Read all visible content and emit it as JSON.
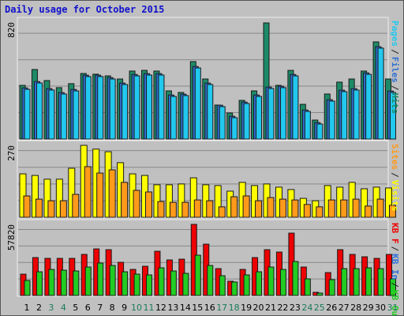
{
  "title": "Daily usage for October 2015",
  "chart_data": [
    {
      "type": "bar",
      "ylim": [
        0,
        820
      ],
      "yticks": [
        820
      ],
      "legend_separator": "/",
      "series": [
        {
          "name": "Hits",
          "color": "#1d8a67",
          "values": [
            379,
            491,
            413,
            363,
            391,
            463,
            458,
            446,
            424,
            480,
            485,
            480,
            340,
            329,
            547,
            424,
            240,
            184,
            273,
            340,
            820,
            379,
            485,
            245,
            134,
            318,
            402,
            424,
            480,
            686,
            424
          ]
        },
        {
          "name": "Files",
          "color": "#2e6fd6",
          "values": [
            361,
            406,
            356,
            328,
            350,
            451,
            451,
            434,
            395,
            456,
            462,
            462,
            311,
            317,
            512,
            395,
            239,
            161,
            261,
            311,
            367,
            373,
            456,
            205,
            116,
            278,
            345,
            356,
            467,
            652,
            339
          ]
        },
        {
          "name": "Pages",
          "color": "#22c8ee",
          "values": [
            351,
            396,
            346,
            318,
            340,
            441,
            441,
            424,
            385,
            446,
            452,
            452,
            301,
            307,
            502,
            385,
            229,
            151,
            251,
            301,
            357,
            363,
            446,
            195,
            106,
            268,
            335,
            346,
            457,
            642,
            329
          ]
        }
      ]
    },
    {
      "type": "bar",
      "ylim": [
        0,
        270
      ],
      "yticks": [
        270
      ],
      "legend_separator": "/",
      "series": [
        {
          "name": "Visits",
          "color": "#ffff00",
          "values": [
            163,
            157,
            143,
            143,
            184,
            270,
            256,
            246,
            205,
            163,
            157,
            122,
            122,
            125,
            148,
            122,
            119,
            98,
            131,
            119,
            125,
            113,
            104,
            71,
            62,
            119,
            113,
            131,
            107,
            113,
            110
          ]
        },
        {
          "name": "Sites",
          "color": "#ff9a1a",
          "values": [
            80,
            68,
            62,
            62,
            86,
            190,
            166,
            178,
            131,
            101,
            95,
            59,
            56,
            56,
            65,
            62,
            39,
            77,
            80,
            62,
            74,
            68,
            65,
            48,
            39,
            65,
            65,
            68,
            42,
            68,
            45
          ]
        }
      ]
    },
    {
      "type": "bar",
      "ylim": [
        0,
        57820
      ],
      "yticks": [
        57820
      ],
      "legend_separator": "/",
      "categories": [
        "1",
        "2",
        "3",
        "4",
        "5",
        "6",
        "7",
        "8",
        "9",
        "10",
        "11",
        "12",
        "13",
        "14",
        "15",
        "16",
        "17",
        "18",
        "19",
        "20",
        "21",
        "22",
        "23",
        "24",
        "25",
        "26",
        "27",
        "28",
        "29",
        "30",
        "31"
      ],
      "category_colors": [
        "#000000",
        "#000000",
        "#1a7a5a",
        "#1a7a5a",
        "#000000",
        "#000000",
        "#000000",
        "#000000",
        "#000000",
        "#1a7a5a",
        "#1a7a5a",
        "#000000",
        "#000000",
        "#000000",
        "#000000",
        "#000000",
        "#1a7a5a",
        "#1a7a5a",
        "#000000",
        "#000000",
        "#000000",
        "#000000",
        "#000000",
        "#1a7a5a",
        "#1a7a5a",
        "#000000",
        "#000000",
        "#000000",
        "#000000",
        "#000000",
        "#1a7a5a"
      ],
      "legend": [
        {
          "name": "KB F",
          "color": "#ee0000"
        },
        {
          "name": "KB In",
          "color": "#2e6fd6"
        },
        {
          "name": "KB Out",
          "color": "#22cc22"
        }
      ],
      "series": [
        {
          "name": "KB F",
          "color": "#ee0000",
          "values": [
            17334,
            30816,
            30174,
            30174,
            30174,
            33384,
            37878,
            37236,
            26964,
            21186,
            23754,
            35952,
            28890,
            29532,
            57820,
            41724,
            21828,
            11556,
            21186,
            30816,
            37236,
            35310,
            50718,
            23112,
            2568,
            18618,
            37236,
            33384,
            31458,
            30174,
            33384
          ]
        },
        {
          "name": "KB Out",
          "color": "#22cc22",
          "values": [
            12198,
            19260,
            21186,
            20544,
            19902,
            23112,
            26322,
            24396,
            19260,
            17334,
            16692,
            22470,
            19902,
            17976,
            32742,
            24396,
            16050,
            10914,
            16692,
            19260,
            23112,
            21186,
            27606,
            13482,
            1926,
            12840,
            21828,
            21828,
            22470,
            21828,
            13482
          ]
        }
      ]
    }
  ]
}
